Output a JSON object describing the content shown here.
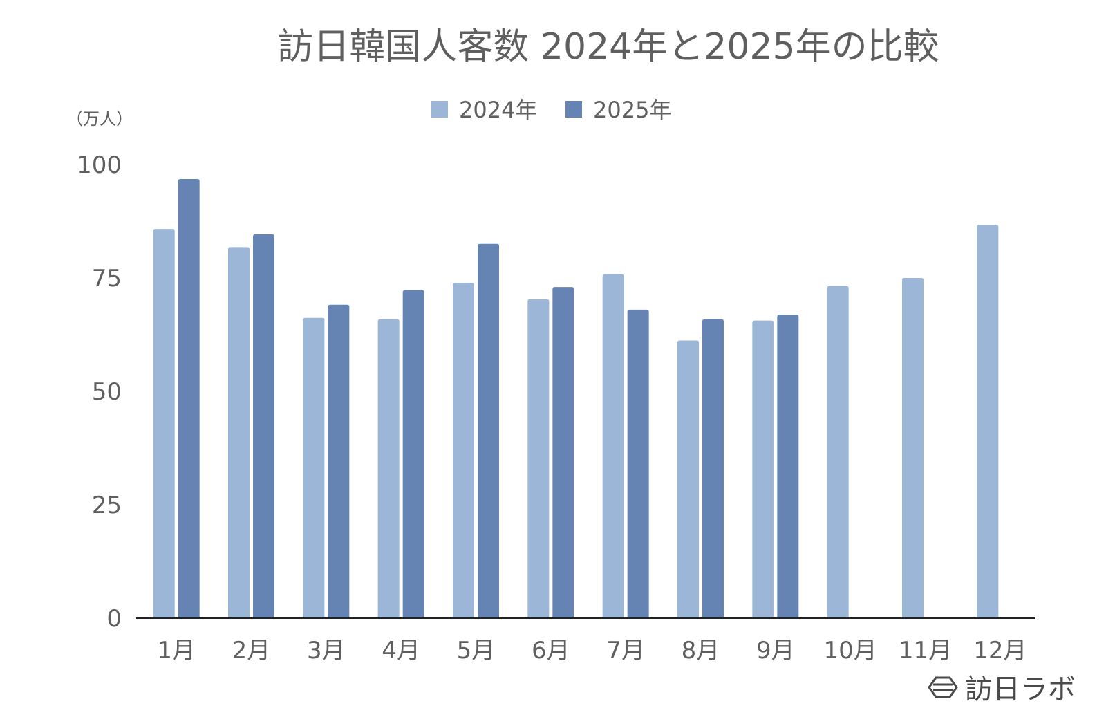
{
  "chart_data": {
    "type": "bar",
    "title": "訪日韓国人客数 2024年と2025年の比較",
    "ylabel": "（万人）",
    "xlabel": "",
    "ylim": [
      0,
      100
    ],
    "yticks": [
      0,
      25,
      50,
      75,
      100
    ],
    "categories": [
      "1月",
      "2月",
      "3月",
      "4月",
      "5月",
      "6月",
      "7月",
      "8月",
      "9月",
      "10月",
      "11月",
      "12月"
    ],
    "series": [
      {
        "name": "2024年",
        "color": "#9bb6d6",
        "values": [
          85.8,
          81.8,
          66.2,
          65.9,
          73.9,
          70.3,
          75.8,
          61.2,
          65.6,
          73.2,
          75.0,
          86.7
        ]
      },
      {
        "name": "2025年",
        "color": "#6584b3",
        "values": [
          96.8,
          84.6,
          69.1,
          72.3,
          82.5,
          73.0,
          68.0,
          65.9,
          66.9,
          null,
          null,
          null
        ]
      }
    ],
    "grid": false,
    "legend": "top-center"
  },
  "brand": {
    "name": "訪日ラボ",
    "icon": "hexagon-logo-icon"
  },
  "colors": {
    "axis": "#222222",
    "text": "#5f5f5f"
  }
}
